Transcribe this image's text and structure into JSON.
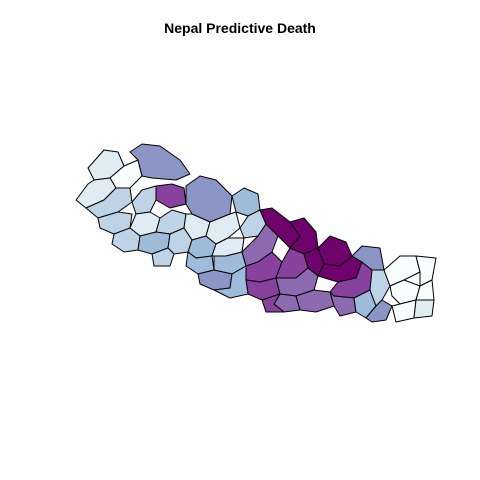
{
  "title": "Nepal Predictive Death",
  "map": {
    "region": "Nepal",
    "unit": "districts",
    "colors": {
      "level_1": "#f7fcfd",
      "level_2": "#e0ecf4",
      "level_3": "#bfd3e6",
      "level_4": "#9ebcda",
      "level_5": "#8c96c6",
      "level_6": "#8c6bb1",
      "level_7": "#88419d",
      "level_8": "#6e016b"
    },
    "districts": [
      {
        "level": 2
      },
      {
        "level": 1
      },
      {
        "level": 2
      },
      {
        "level": 3
      },
      {
        "level": 5
      },
      {
        "level": 7
      },
      {
        "level": 5
      },
      {
        "level": 3
      },
      {
        "level": 4
      },
      {
        "level": 3
      },
      {
        "level": 2
      },
      {
        "level": 3
      },
      {
        "level": 2
      },
      {
        "level": 3
      },
      {
        "level": 4
      },
      {
        "level": 3
      },
      {
        "level": 4
      },
      {
        "level": 2
      },
      {
        "level": 3
      },
      {
        "level": 2
      },
      {
        "level": 3
      },
      {
        "level": 4
      },
      {
        "level": 4
      },
      {
        "level": 5
      },
      {
        "level": 6
      },
      {
        "level": 8
      },
      {
        "level": 7
      },
      {
        "level": 8
      },
      {
        "level": 7
      },
      {
        "level": 8
      },
      {
        "level": 8
      },
      {
        "level": 7
      },
      {
        "level": 6
      },
      {
        "level": 8
      },
      {
        "level": 6
      },
      {
        "level": 6
      },
      {
        "level": 7
      },
      {
        "level": 6
      },
      {
        "level": 5
      },
      {
        "level": 4
      },
      {
        "level": 3
      },
      {
        "level": 5
      },
      {
        "level": 1
      },
      {
        "level": 1
      },
      {
        "level": 1
      },
      {
        "level": 1
      },
      {
        "level": 1
      },
      {
        "level": 2
      },
      {
        "level": 4
      },
      {
        "level": 7
      }
    ]
  }
}
